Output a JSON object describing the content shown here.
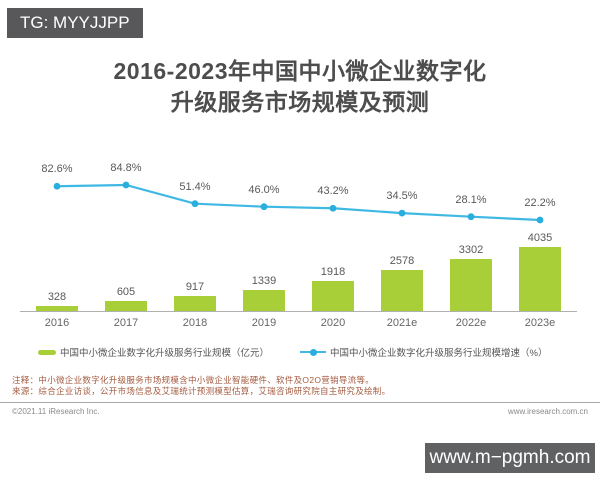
{
  "badges": {
    "top_left": "TG: MYYJJPP",
    "bottom_right": "www.m−pgmh.com"
  },
  "title": {
    "line1": "2016-2023年中国中小微企业数字化",
    "line2": "升级服务市场规模及预测"
  },
  "chart_data": {
    "type": "bar",
    "title": "2016-2023年中国中小微企业数字化升级服务市场规模及预测",
    "categories": [
      "2016",
      "2017",
      "2018",
      "2019",
      "2020",
      "2021e",
      "2022e",
      "2023e"
    ],
    "series": [
      {
        "name": "中国中小微企业数字化升级服务行业规模（亿元）",
        "type": "bar",
        "unit": "亿元",
        "color": "#a9cf38",
        "values": [
          328,
          605,
          917,
          1339,
          1918,
          2578,
          3302,
          4035
        ]
      },
      {
        "name": "中国中小微企业数字化升级服务行业规模增速（%）",
        "type": "line",
        "unit": "%",
        "color": "#3fb9e4",
        "dot_color": "#29aedd",
        "values": [
          82.6,
          84.8,
          51.4,
          46.0,
          43.2,
          34.5,
          28.1,
          22.2
        ]
      }
    ],
    "ylim": [
      0,
      4300
    ],
    "grid": false,
    "legend_position": "bottom",
    "data_labels": true
  },
  "legend": {
    "bar_label": "中国中小微企业数字化升级服务行业规模（亿元）",
    "line_label": "中国中小微企业数字化升级服务行业规模增速（%）"
  },
  "footnotes": {
    "line1": "注释：中小微企业数字化升级服务市场规模含中小微企业智能硬件、软件及O2O营销导流等。",
    "line2": "来源：综合企业访谈，公开市场信息及艾瑞统计预测模型估算，艾瑞咨询研究院自主研究及绘制。"
  },
  "footer": {
    "copyright": "©2021.11 iResearch Inc.",
    "website": "www.iresearch.com.cn"
  },
  "colors": {
    "bar": "#a9cf38",
    "line": "#3fb9e4",
    "line_dot": "#29aedd",
    "badge_background": "#59595b",
    "title_text": "#4d4d4d",
    "footnote_text": "#a55c42"
  }
}
